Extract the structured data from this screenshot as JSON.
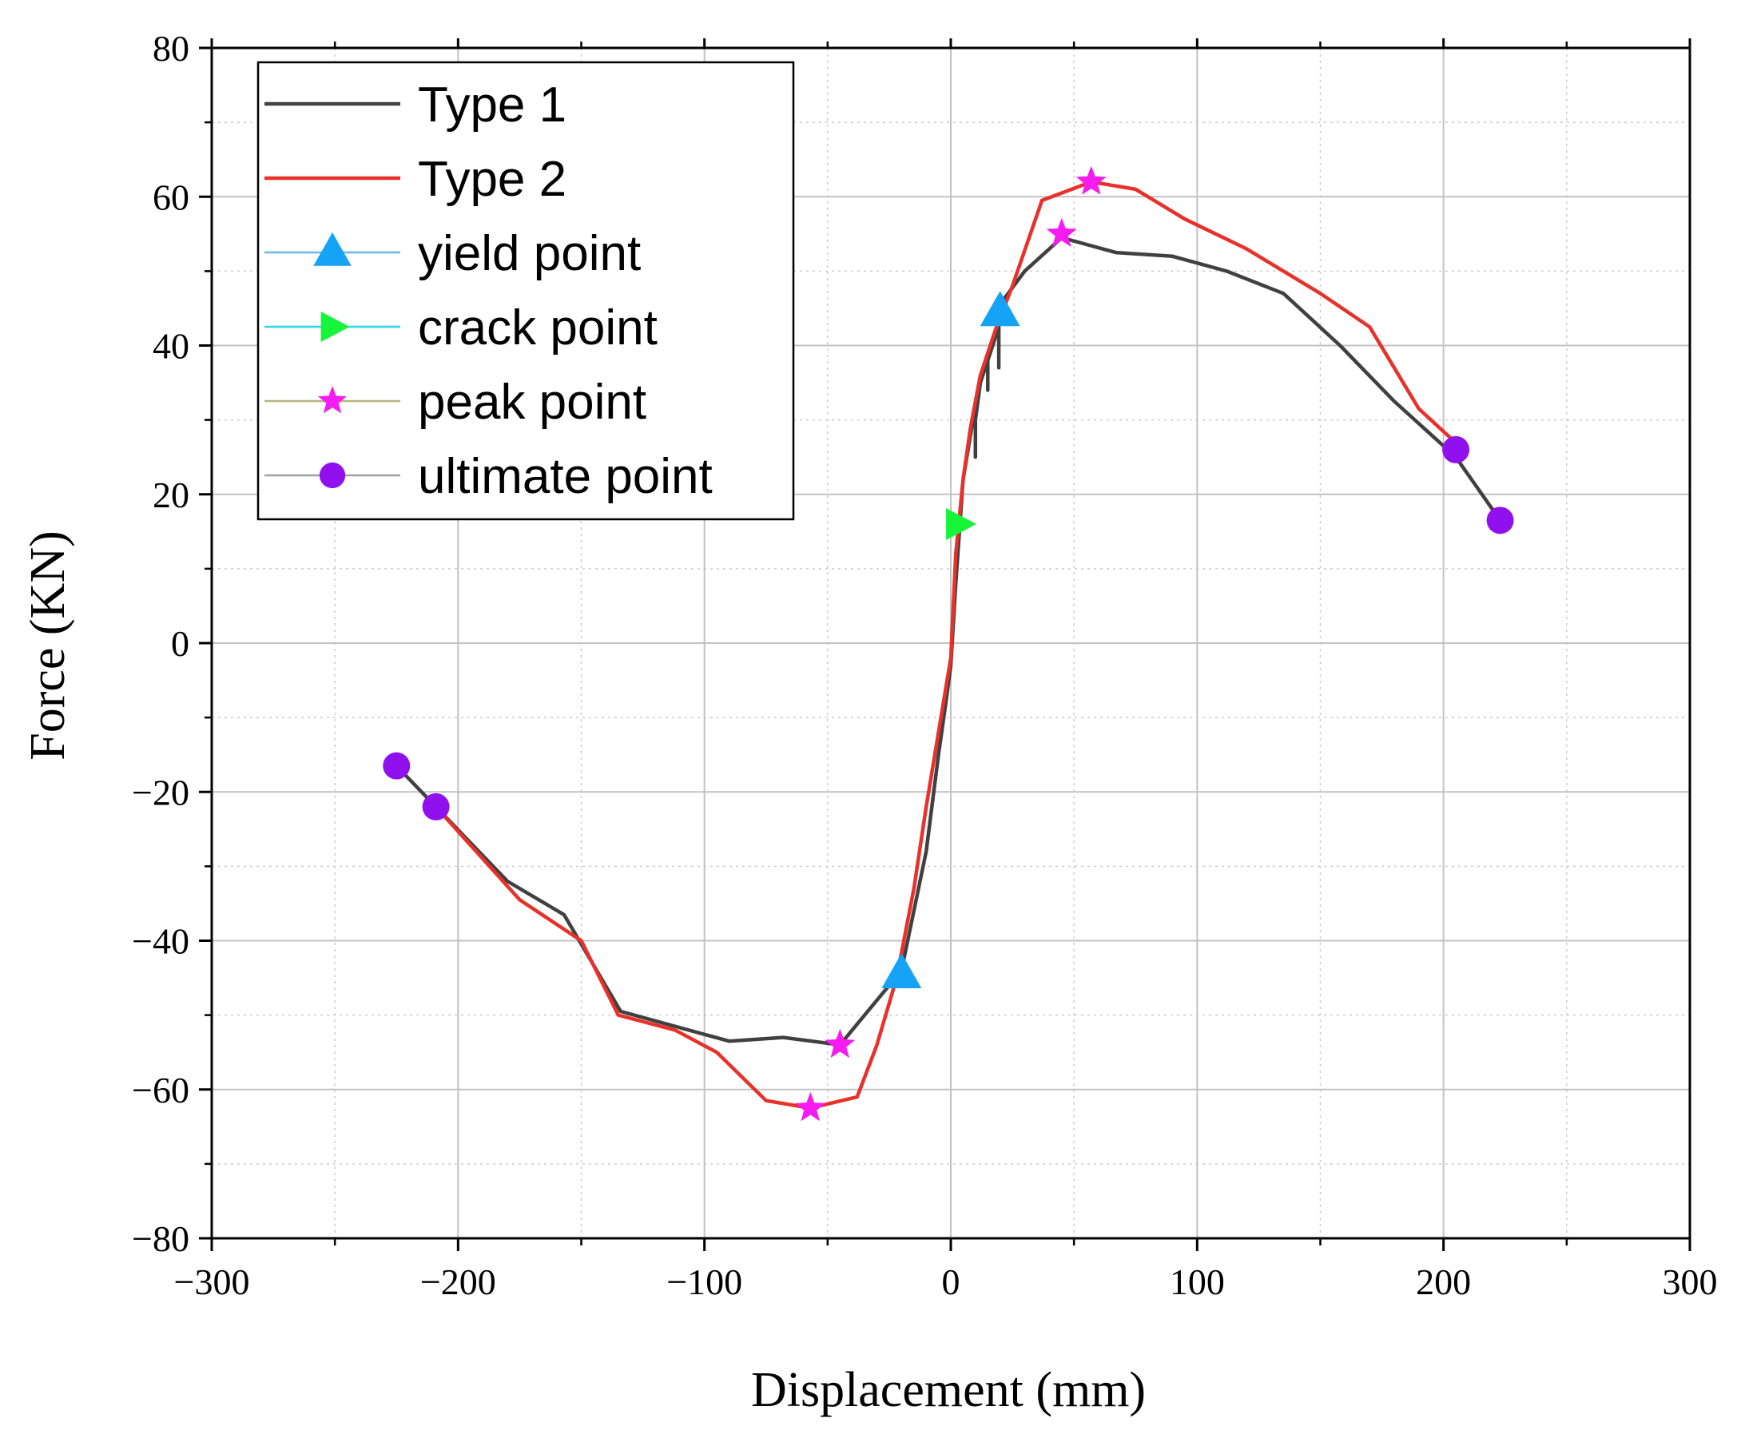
{
  "chart_data": {
    "type": "line",
    "title": "",
    "xlabel": "Displacement (mm)",
    "ylabel": "Force (KN)",
    "xlim": [
      -300,
      300
    ],
    "ylim": [
      -80,
      80
    ],
    "xticks": [
      -300,
      -200,
      -100,
      0,
      100,
      200,
      300
    ],
    "xtick_labels": [
      "−300",
      "−200",
      "−100",
      "0",
      "100",
      "200",
      "300"
    ],
    "yticks": [
      -80,
      -60,
      -40,
      -20,
      0,
      20,
      40,
      60,
      80
    ],
    "ytick_labels": [
      "−80",
      "−60",
      "−40",
      "−20",
      "0",
      "20",
      "40",
      "60",
      "80"
    ],
    "grid": true,
    "legend_position": "top-left",
    "series": [
      {
        "name": "Type 1",
        "color": "#404040",
        "x": [
          -225,
          -209,
          -180,
          -157,
          -134,
          -90,
          -68,
          -45,
          -20,
          -10,
          -5,
          -2,
          0,
          2,
          5,
          8,
          10,
          10,
          10,
          12,
          15,
          15,
          15,
          18,
          19.5,
          19.5,
          19.5,
          21,
          30,
          45,
          67,
          90,
          112,
          135,
          158,
          180,
          205,
          223
        ],
        "y": [
          -16.5,
          -22,
          -32,
          -36.5,
          -49.5,
          -53.5,
          -53,
          -54,
          -44,
          -28,
          -15,
          -8,
          -3,
          8,
          22,
          28,
          32,
          25,
          30,
          35,
          38,
          34,
          38,
          41,
          44,
          37,
          43,
          46,
          50,
          54.5,
          52.5,
          52,
          50,
          47,
          40,
          32.5,
          25,
          16.5
        ]
      },
      {
        "name": "Type 2",
        "color": "#e8312a",
        "x": [
          -209,
          -175,
          -150,
          -135,
          -112,
          -95,
          -75,
          -57,
          -38,
          -30,
          -22,
          -15,
          -10,
          -5,
          -2,
          0,
          2,
          5,
          8,
          12,
          18,
          25,
          37,
          57,
          75,
          95,
          120,
          150,
          170,
          190,
          208
        ],
        "y": [
          -22,
          -34.5,
          -40,
          -50,
          -52,
          -55,
          -61.5,
          -62.5,
          -61,
          -54,
          -45,
          -33,
          -22,
          -12,
          -6,
          -2,
          12,
          22,
          29,
          36,
          42,
          48,
          59.5,
          62,
          61,
          57,
          53,
          47,
          42.5,
          31.5,
          26
        ]
      }
    ],
    "markers": [
      {
        "name": "yield point",
        "symbol": "triangle-up",
        "color": "#16a3f5",
        "line_color": "#6ab5f0",
        "points": [
          {
            "x": -20,
            "y": -44.5
          },
          {
            "x": 20,
            "y": 44.5
          }
        ]
      },
      {
        "name": "crack point",
        "symbol": "triangle-right",
        "color": "#17f53a",
        "line_color": "#2fd6df",
        "points": [
          {
            "x": 3,
            "y": 16
          }
        ]
      },
      {
        "name": "peak point",
        "symbol": "star",
        "color": "#f41cf0",
        "line_color": "#b9b27a",
        "points": [
          {
            "x": -45,
            "y": -54
          },
          {
            "x": -57,
            "y": -62.5
          },
          {
            "x": 45,
            "y": 55
          },
          {
            "x": 57,
            "y": 62
          }
        ]
      },
      {
        "name": "ultimate point",
        "symbol": "circle",
        "color": "#9110ee",
        "line_color": "#a0a0a0",
        "points": [
          {
            "x": -225,
            "y": -16.5
          },
          {
            "x": -209,
            "y": -22
          },
          {
            "x": 205,
            "y": 26
          },
          {
            "x": 223,
            "y": 16.5
          }
        ]
      }
    ]
  }
}
